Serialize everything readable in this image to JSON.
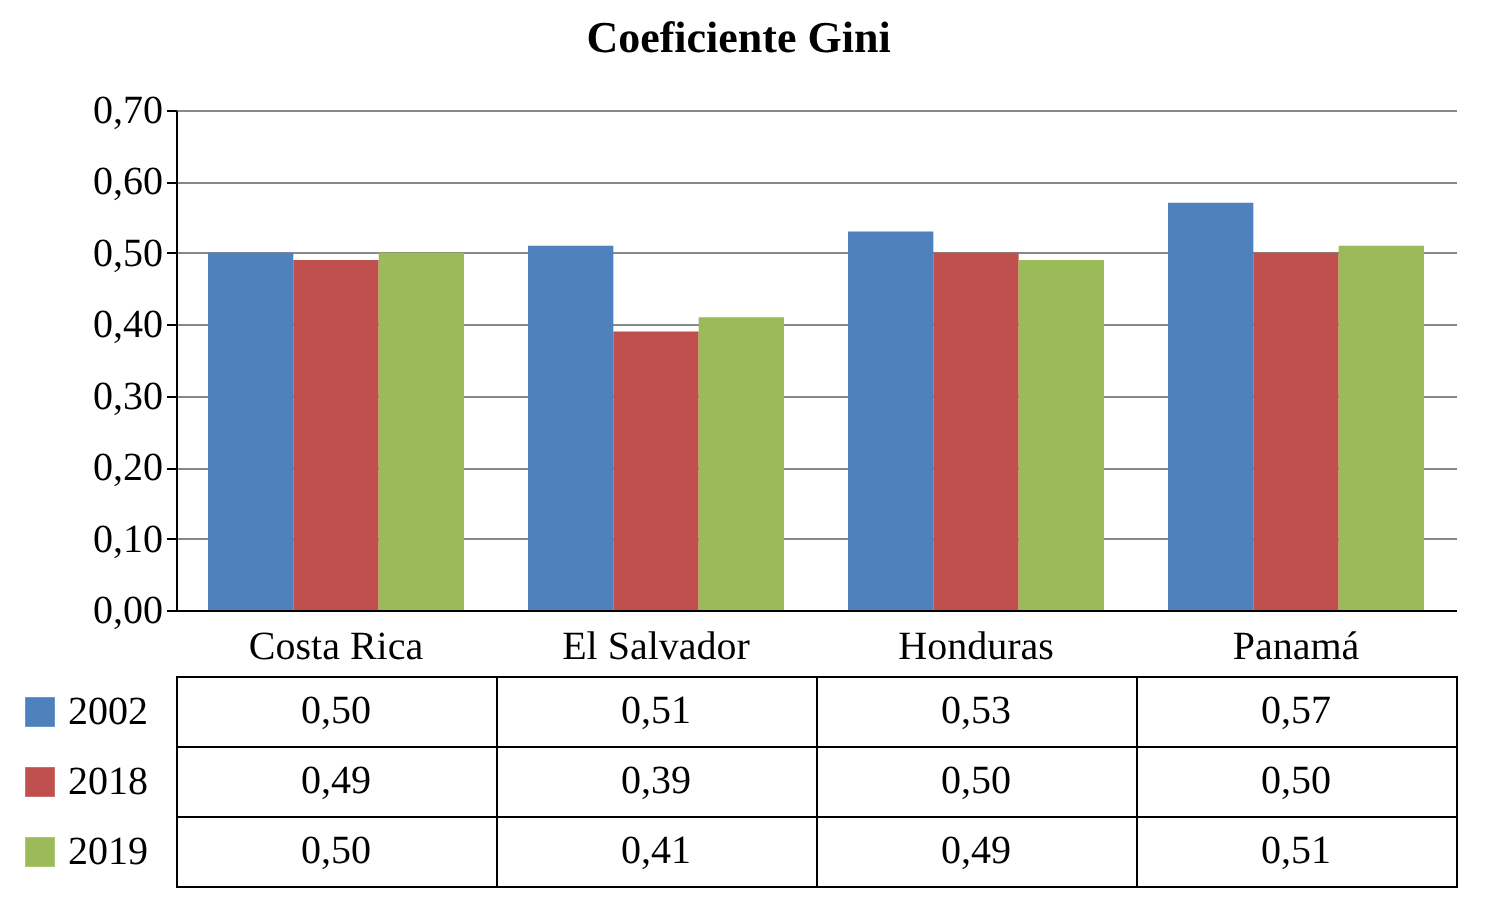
{
  "chart_data": {
    "type": "bar",
    "title": "Coeficiente Gini",
    "categories": [
      "Costa Rica",
      "El Salvador",
      "Honduras",
      "Panamá"
    ],
    "series": [
      {
        "name": "2002",
        "color": "#4f81bd",
        "values": [
          0.5,
          0.51,
          0.53,
          0.57
        ],
        "value_labels": [
          "0,50",
          "0,51",
          "0,53",
          "0,57"
        ]
      },
      {
        "name": "2018",
        "color": "#c0504d",
        "values": [
          0.49,
          0.39,
          0.5,
          0.5
        ],
        "value_labels": [
          "0,49",
          "0,39",
          "0,50",
          "0,50"
        ]
      },
      {
        "name": "2019",
        "color": "#9bbb59",
        "values": [
          0.5,
          0.41,
          0.49,
          0.51
        ],
        "value_labels": [
          "0,50",
          "0,41",
          "0,49",
          "0,51"
        ]
      }
    ],
    "ylim": [
      0,
      0.7
    ],
    "yticks": [
      {
        "value": 0,
        "label": "0,00"
      },
      {
        "value": 0.1,
        "label": "0,10"
      },
      {
        "value": 0.2,
        "label": "0,20"
      },
      {
        "value": 0.3,
        "label": "0,30"
      },
      {
        "value": 0.4,
        "label": "0,40"
      },
      {
        "value": 0.5,
        "label": "0,50"
      },
      {
        "value": 0.6,
        "label": "0,60"
      },
      {
        "value": 0.7,
        "label": "0,70"
      }
    ],
    "grid": "y",
    "legend": "bottom left"
  }
}
